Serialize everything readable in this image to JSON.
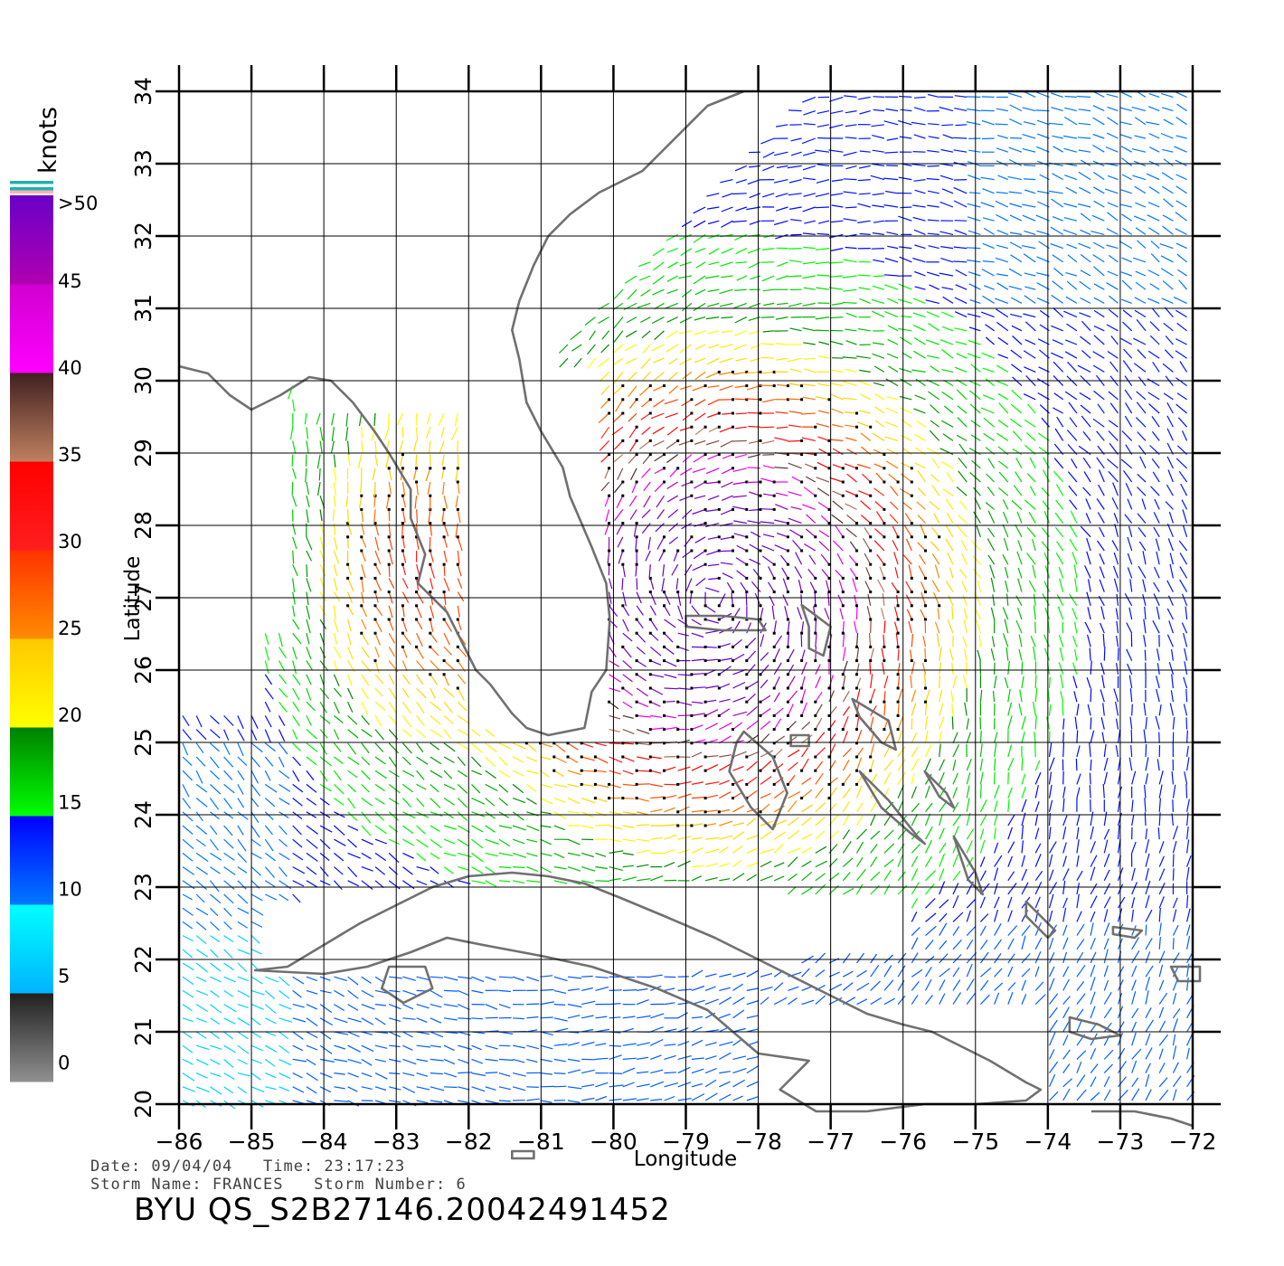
{
  "map": {
    "xlabel": "Longitude",
    "ylabel": "Latitude",
    "lon_range": [
      -86,
      -72
    ],
    "lat_range": [
      20,
      34
    ],
    "lon_ticks": [
      "−86",
      "−85",
      "−84",
      "−83",
      "−82",
      "−81",
      "−80",
      "−79",
      "−78",
      "−77",
      "−76",
      "−75",
      "−74",
      "−73",
      "−72"
    ],
    "lat_ticks": [
      "20",
      "21",
      "22",
      "23",
      "24",
      "25",
      "26",
      "27",
      "28",
      "29",
      "30",
      "31",
      "32",
      "33",
      "34"
    ],
    "grid": true,
    "land_outline_color": "#707070"
  },
  "colorbar": {
    "unit": "knots",
    "top_label": ">50",
    "labels": [
      "45",
      "40",
      "35",
      "30",
      "25",
      "20",
      "15",
      "10",
      "5",
      "0"
    ],
    "stops": [
      {
        "from": 0,
        "to": 5,
        "top": "#202020",
        "bottom": "#909090"
      },
      {
        "from": 5,
        "to": 10,
        "top": "#00ffff",
        "bottom": "#00b4ff"
      },
      {
        "from": 10,
        "to": 15,
        "top": "#0000ff",
        "bottom": "#0078ff"
      },
      {
        "from": 15,
        "to": 20,
        "top": "#008000",
        "bottom": "#00ff00"
      },
      {
        "from": 20,
        "to": 25,
        "top": "#ffc800",
        "bottom": "#ffff00"
      },
      {
        "from": 25,
        "to": 30,
        "top": "#ff3200",
        "bottom": "#ff8c00"
      },
      {
        "from": 30,
        "to": 35,
        "top": "#ff0000",
        "bottom": "#ff1e1e"
      },
      {
        "from": 35,
        "to": 40,
        "top": "#402020",
        "bottom": "#c08060"
      },
      {
        "from": 40,
        "to": 45,
        "top": "#d000d0",
        "bottom": "#ff00ff"
      },
      {
        "from": 45,
        "to": 50,
        "top": "#6a00c8",
        "bottom": "#b000b0"
      }
    ],
    "rain_flag_colors": [
      "#20b0b0",
      "#ffffff",
      "#20b0b0",
      "#ffb0b0"
    ]
  },
  "info": {
    "date_line": "Date: 09/04/04   Time: 23:17:23",
    "storm_line": "Storm Name: FRANCES   Storm Number: 6",
    "product_id": "BYU QS_S2B27146.20042491452"
  },
  "storm": {
    "name": "FRANCES",
    "center_lon": -78.6,
    "center_lat": 27.0
  },
  "land": [
    {
      "name": "florida-and-gulf-coast",
      "lonlat": [
        [
          -86,
          30.2
        ],
        [
          -85.6,
          30.1
        ],
        [
          -85.3,
          29.8
        ],
        [
          -85.0,
          29.6
        ],
        [
          -84.6,
          29.8
        ],
        [
          -84.2,
          30.05
        ],
        [
          -83.9,
          30.0
        ],
        [
          -83.6,
          29.7
        ],
        [
          -83.3,
          29.3
        ],
        [
          -83.1,
          29.0
        ],
        [
          -82.8,
          28.5
        ],
        [
          -82.8,
          28.1
        ],
        [
          -82.6,
          27.6
        ],
        [
          -82.7,
          27.2
        ],
        [
          -82.3,
          26.8
        ],
        [
          -82.1,
          26.4
        ],
        [
          -81.9,
          26.0
        ],
        [
          -81.7,
          25.8
        ],
        [
          -81.4,
          25.4
        ],
        [
          -81.2,
          25.2
        ],
        [
          -80.9,
          25.1
        ],
        [
          -80.4,
          25.2
        ],
        [
          -80.3,
          25.7
        ],
        [
          -80.1,
          26.0
        ],
        [
          -80.05,
          26.7
        ],
        [
          -80.1,
          27.2
        ],
        [
          -80.3,
          27.7
        ],
        [
          -80.6,
          28.4
        ],
        [
          -80.7,
          28.8
        ],
        [
          -81.0,
          29.3
        ],
        [
          -81.2,
          29.7
        ],
        [
          -81.3,
          30.3
        ],
        [
          -81.4,
          30.7
        ],
        [
          -81.3,
          31.1
        ],
        [
          -81.1,
          31.6
        ],
        [
          -80.9,
          32.0
        ],
        [
          -80.6,
          32.3
        ],
        [
          -80.2,
          32.6
        ],
        [
          -79.6,
          32.9
        ],
        [
          -79.1,
          33.4
        ],
        [
          -78.7,
          33.8
        ],
        [
          -78.2,
          34.0
        ]
      ]
    },
    {
      "name": "cuba",
      "closed": true,
      "lonlat": [
        [
          -84.95,
          21.85
        ],
        [
          -84.5,
          21.9
        ],
        [
          -84.0,
          22.2
        ],
        [
          -83.5,
          22.5
        ],
        [
          -82.9,
          22.8
        ],
        [
          -82.5,
          23.0
        ],
        [
          -82.0,
          23.15
        ],
        [
          -81.4,
          23.2
        ],
        [
          -80.9,
          23.15
        ],
        [
          -80.4,
          23.05
        ],
        [
          -79.9,
          22.85
        ],
        [
          -79.3,
          22.6
        ],
        [
          -78.6,
          22.3
        ],
        [
          -78.0,
          22.0
        ],
        [
          -77.5,
          21.75
        ],
        [
          -77.0,
          21.5
        ],
        [
          -76.5,
          21.25
        ],
        [
          -76.0,
          21.1
        ],
        [
          -75.6,
          21.0
        ],
        [
          -75.2,
          20.8
        ],
        [
          -74.8,
          20.6
        ],
        [
          -74.3,
          20.3
        ],
        [
          -74.1,
          20.2
        ],
        [
          -74.3,
          20.05
        ],
        [
          -75.0,
          20.0
        ],
        [
          -75.7,
          20.0
        ],
        [
          -76.5,
          19.9
        ],
        [
          -77.2,
          19.9
        ],
        [
          -77.7,
          20.2
        ],
        [
          -77.3,
          20.6
        ],
        [
          -78.0,
          20.7
        ],
        [
          -78.7,
          21.3
        ],
        [
          -79.4,
          21.6
        ],
        [
          -80.3,
          21.9
        ],
        [
          -81.0,
          22.05
        ],
        [
          -81.8,
          22.2
        ],
        [
          -82.3,
          22.3
        ],
        [
          -82.8,
          22.1
        ],
        [
          -83.4,
          21.9
        ],
        [
          -84.0,
          21.8
        ],
        [
          -84.95,
          21.85
        ]
      ]
    },
    {
      "name": "isla-de-la-juventud",
      "closed": true,
      "lonlat": [
        [
          -83.1,
          21.9
        ],
        [
          -82.6,
          21.9
        ],
        [
          -82.5,
          21.6
        ],
        [
          -82.9,
          21.4
        ],
        [
          -83.2,
          21.6
        ],
        [
          -83.1,
          21.9
        ]
      ]
    },
    {
      "name": "andros-island",
      "closed": true,
      "lonlat": [
        [
          -78.2,
          25.15
        ],
        [
          -77.8,
          24.8
        ],
        [
          -77.6,
          24.3
        ],
        [
          -77.8,
          23.8
        ],
        [
          -78.1,
          24.1
        ],
        [
          -78.4,
          24.6
        ],
        [
          -78.3,
          25.0
        ],
        [
          -78.2,
          25.15
        ]
      ]
    },
    {
      "name": "grand-bahama",
      "closed": true,
      "lonlat": [
        [
          -79.0,
          26.75
        ],
        [
          -78.5,
          26.75
        ],
        [
          -78.0,
          26.7
        ],
        [
          -77.9,
          26.55
        ],
        [
          -78.5,
          26.55
        ],
        [
          -79.0,
          26.6
        ],
        [
          -79.0,
          26.75
        ]
      ]
    },
    {
      "name": "abaco",
      "closed": true,
      "lonlat": [
        [
          -77.4,
          26.9
        ],
        [
          -77.0,
          26.6
        ],
        [
          -77.1,
          26.2
        ],
        [
          -77.3,
          26.3
        ],
        [
          -77.3,
          26.6
        ],
        [
          -77.4,
          26.9
        ]
      ]
    },
    {
      "name": "eleuthera",
      "closed": true,
      "lonlat": [
        [
          -76.7,
          25.6
        ],
        [
          -76.2,
          25.3
        ],
        [
          -76.1,
          24.9
        ],
        [
          -76.3,
          25.0
        ],
        [
          -76.6,
          25.35
        ],
        [
          -76.7,
          25.6
        ]
      ]
    },
    {
      "name": "new-providence",
      "closed": true,
      "lonlat": [
        [
          -77.55,
          25.1
        ],
        [
          -77.3,
          25.1
        ],
        [
          -77.3,
          24.95
        ],
        [
          -77.55,
          24.95
        ],
        [
          -77.55,
          25.1
        ]
      ]
    },
    {
      "name": "exuma-chain",
      "closed": true,
      "lonlat": [
        [
          -76.6,
          24.6
        ],
        [
          -76.2,
          24.2
        ],
        [
          -75.8,
          23.7
        ],
        [
          -75.7,
          23.6
        ],
        [
          -75.9,
          23.75
        ],
        [
          -76.3,
          24.1
        ],
        [
          -76.6,
          24.6
        ]
      ]
    },
    {
      "name": "long-island",
      "closed": true,
      "lonlat": [
        [
          -75.3,
          23.7
        ],
        [
          -75.0,
          23.2
        ],
        [
          -74.9,
          22.9
        ],
        [
          -75.1,
          23.1
        ],
        [
          -75.3,
          23.7
        ]
      ]
    },
    {
      "name": "cat-island",
      "closed": true,
      "lonlat": [
        [
          -75.7,
          24.6
        ],
        [
          -75.4,
          24.3
        ],
        [
          -75.3,
          24.1
        ],
        [
          -75.5,
          24.25
        ],
        [
          -75.7,
          24.6
        ]
      ]
    },
    {
      "name": "acklins",
      "closed": true,
      "lonlat": [
        [
          -74.3,
          22.8
        ],
        [
          -73.9,
          22.4
        ],
        [
          -74.0,
          22.3
        ],
        [
          -74.3,
          22.6
        ],
        [
          -74.3,
          22.8
        ]
      ]
    },
    {
      "name": "mayaguana",
      "closed": true,
      "lonlat": [
        [
          -73.1,
          22.45
        ],
        [
          -72.7,
          22.4
        ],
        [
          -72.8,
          22.3
        ],
        [
          -73.1,
          22.35
        ],
        [
          -73.1,
          22.45
        ]
      ]
    },
    {
      "name": "inagua",
      "closed": true,
      "lonlat": [
        [
          -73.7,
          21.2
        ],
        [
          -73.3,
          21.1
        ],
        [
          -73.0,
          20.95
        ],
        [
          -73.4,
          20.9
        ],
        [
          -73.7,
          21.0
        ],
        [
          -73.7,
          21.2
        ]
      ]
    },
    {
      "name": "turks-caicos",
      "closed": true,
      "lonlat": [
        [
          -72.3,
          21.9
        ],
        [
          -71.9,
          21.9
        ],
        [
          -71.9,
          21.7
        ],
        [
          -72.2,
          21.7
        ],
        [
          -72.3,
          21.9
        ]
      ]
    },
    {
      "name": "hispaniola",
      "lonlat": [
        [
          -73.4,
          19.9
        ],
        [
          -72.8,
          19.9
        ],
        [
          -72.3,
          19.8
        ],
        [
          -72.0,
          19.7
        ]
      ]
    },
    {
      "name": "cayman-island",
      "closed": true,
      "lonlat": [
        [
          -81.4,
          19.35
        ],
        [
          -81.1,
          19.35
        ],
        [
          -81.1,
          19.25
        ],
        [
          -81.4,
          19.25
        ],
        [
          -81.4,
          19.35
        ]
      ]
    }
  ]
}
